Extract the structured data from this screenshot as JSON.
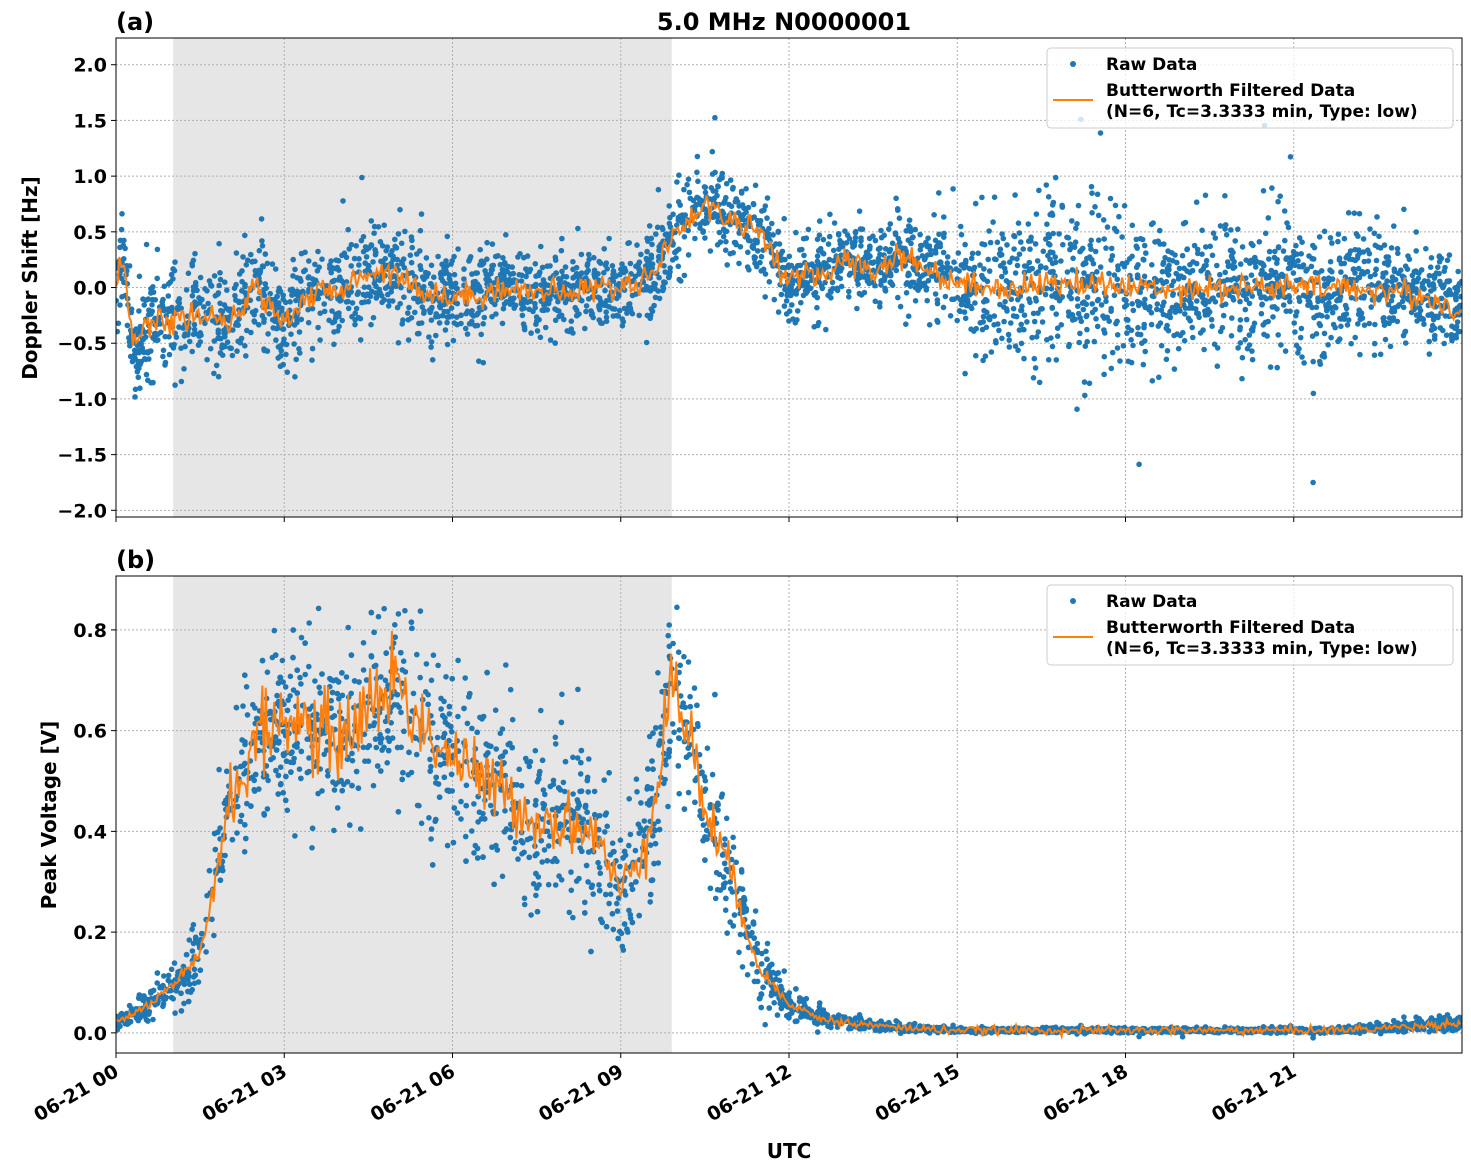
{
  "figure_title": "5.0 MHz N0000001",
  "xlabel": "UTC",
  "colors": {
    "raw": "#1f77b4",
    "filtered": "#ff7f0e",
    "shade": "#e6e6e6",
    "grid": "#b0b0b0"
  },
  "chart_data": [
    {
      "type": "scatter",
      "panel_label": "(a)",
      "ylabel": "Doppler Shift [Hz]",
      "xlim_hours_utc": [
        0,
        24
      ],
      "ylim": [
        -2.06,
        2.24
      ],
      "grid": true,
      "legend_position": "top-right",
      "shaded_interval_hours_utc": [
        1.02,
        9.91
      ],
      "x_tick_labels": [
        "06-21 00",
        "06-21 03",
        "06-21 06",
        "06-21 09",
        "06-21 12",
        "06-21 15",
        "06-21 18",
        "06-21 21"
      ],
      "x_tick_hours": [
        0,
        3,
        6,
        9,
        12,
        15,
        18,
        21
      ],
      "y_ticks": [
        -2.0,
        -1.5,
        -1.0,
        -0.5,
        0.0,
        0.5,
        1.0,
        1.5,
        2.0
      ],
      "y_tick_labels": [
        "−2.0",
        "−1.5",
        "−1.0",
        "−0.5",
        "0.0",
        "0.5",
        "1.0",
        "1.5",
        "2.0"
      ],
      "legend": [
        "Raw Data",
        "Butterworth Filtered Data",
        "(N=6, Tc=3.3333 min, Type: low)"
      ],
      "series": [
        {
          "name": "Butterworth Filtered Data",
          "x": [
            0,
            0.15,
            0.3,
            0.5,
            1,
            1.5,
            2,
            2.5,
            3,
            3.5,
            4,
            4.5,
            5,
            5.5,
            6,
            6.5,
            7,
            7.5,
            8,
            8.5,
            9,
            9.5,
            10,
            10.5,
            11,
            11.5,
            12,
            12.5,
            13,
            13.5,
            14,
            14.5,
            15,
            15.5,
            16,
            17,
            18,
            19,
            20,
            21,
            22,
            23,
            24
          ],
          "y": [
            0.0,
            0.3,
            -0.55,
            -0.35,
            -0.3,
            -0.25,
            -0.35,
            0.0,
            -0.3,
            -0.05,
            -0.05,
            0.15,
            0.15,
            -0.05,
            -0.1,
            -0.05,
            0.0,
            -0.05,
            -0.05,
            0.0,
            0.0,
            0.1,
            0.5,
            0.75,
            0.6,
            0.5,
            0.05,
            0.1,
            0.25,
            0.15,
            0.3,
            0.15,
            0.05,
            0.0,
            0.0,
            0.05,
            0.0,
            0.0,
            0.0,
            0.0,
            0.0,
            -0.05,
            -0.2
          ]
        },
        {
          "name": "Raw Data",
          "x": [
            0,
            1,
            2,
            3,
            4,
            5,
            6,
            7,
            8,
            9,
            10,
            11,
            12,
            13,
            14,
            15,
            16,
            17,
            18,
            19,
            20,
            21,
            22,
            23,
            24
          ],
          "spread_halfwidth": [
            0.45,
            0.45,
            0.45,
            0.45,
            0.45,
            0.45,
            0.4,
            0.35,
            0.35,
            0.35,
            0.4,
            0.4,
            0.35,
            0.35,
            0.35,
            0.45,
            0.7,
            0.8,
            0.65,
            0.6,
            0.6,
            0.65,
            0.55,
            0.45,
            0.4
          ]
        }
      ]
    },
    {
      "type": "scatter",
      "panel_label": "(b)",
      "ylabel": "Peak Voltage [V]",
      "xlim_hours_utc": [
        0,
        24
      ],
      "ylim": [
        -0.04,
        0.907
      ],
      "grid": true,
      "legend_position": "top-right",
      "shaded_interval_hours_utc": [
        1.02,
        9.91
      ],
      "x_tick_labels": [
        "06-21 00",
        "06-21 03",
        "06-21 06",
        "06-21 09",
        "06-21 12",
        "06-21 15",
        "06-21 18",
        "06-21 21"
      ],
      "x_tick_hours": [
        0,
        3,
        6,
        9,
        12,
        15,
        18,
        21
      ],
      "y_ticks": [
        0.0,
        0.2,
        0.4,
        0.6,
        0.8
      ],
      "y_tick_labels": [
        "0.0",
        "0.2",
        "0.4",
        "0.6",
        "0.8"
      ],
      "legend": [
        "Raw Data",
        "Butterworth Filtered Data",
        "(N=6, Tc=3.3333 min, Type: low)"
      ],
      "series": [
        {
          "name": "Butterworth Filtered Data",
          "x": [
            0,
            0.5,
            1,
            1.5,
            2,
            2.5,
            3,
            3.5,
            4,
            4.5,
            5,
            5.5,
            6,
            6.5,
            7,
            7.5,
            8,
            8.5,
            9,
            9.5,
            9.9,
            10.2,
            10.5,
            11,
            11.5,
            12,
            12.5,
            13,
            14,
            15,
            16,
            17,
            18,
            19,
            20,
            21,
            22,
            23,
            24
          ],
          "y": [
            0.02,
            0.05,
            0.09,
            0.15,
            0.45,
            0.58,
            0.63,
            0.6,
            0.58,
            0.65,
            0.7,
            0.6,
            0.55,
            0.5,
            0.47,
            0.42,
            0.42,
            0.4,
            0.28,
            0.4,
            0.7,
            0.6,
            0.45,
            0.3,
            0.12,
            0.06,
            0.03,
            0.02,
            0.01,
            0.005,
            0.005,
            0.005,
            0.005,
            0.005,
            0.005,
            0.005,
            0.006,
            0.012,
            0.02
          ]
        },
        {
          "name": "Raw Data",
          "x": [
            0,
            1,
            2,
            3,
            4,
            5,
            6,
            7,
            8,
            9,
            10,
            11,
            12,
            13,
            14,
            15,
            16,
            17,
            18,
            19,
            20,
            21,
            22,
            23,
            24
          ],
          "spread_halfwidth": [
            0.015,
            0.04,
            0.12,
            0.17,
            0.18,
            0.18,
            0.18,
            0.19,
            0.18,
            0.14,
            0.16,
            0.12,
            0.03,
            0.015,
            0.008,
            0.005,
            0.005,
            0.005,
            0.005,
            0.005,
            0.005,
            0.005,
            0.006,
            0.012,
            0.02
          ]
        }
      ]
    }
  ]
}
